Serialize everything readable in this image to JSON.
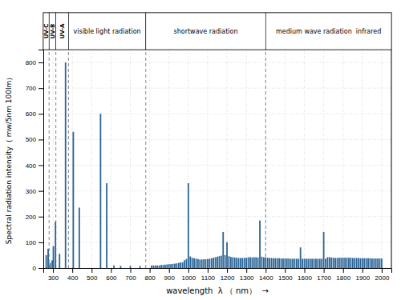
{
  "chart_data": {
    "type": "bar",
    "xlabel": "wavelength  λ （ nm）  →",
    "ylabel": "Spectral radiation intensity（ mw/5nm 100lm）",
    "xlim": [
      250,
      2050
    ],
    "ylim": [
      0,
      850
    ],
    "xticks": [
      300,
      400,
      500,
      600,
      700,
      800,
      900,
      1000,
      1100,
      1200,
      1300,
      1400,
      1500,
      1600,
      1700,
      1800,
      1900,
      2000
    ],
    "yticks": [
      0,
      100,
      200,
      300,
      400,
      500,
      600,
      700,
      800
    ],
    "grid": true,
    "color": "#2a6496",
    "regions": [
      {
        "label": "UV-C",
        "x1": 250,
        "x2": 280
      },
      {
        "label": "UV-B",
        "x1": 280,
        "x2": 315
      },
      {
        "label": "UV-A",
        "x1": 315,
        "x2": 380
      },
      {
        "label": "visible light radiation",
        "x1": 380,
        "x2": 780
      },
      {
        "label": "shortwave radiation",
        "x1": 780,
        "x2": 1400
      },
      {
        "label": "medium wave radiation  infrared",
        "x1": 1400,
        "x2": 2050
      }
    ],
    "dividers": [
      280,
      315,
      380,
      780,
      1400
    ],
    "x": [
      265,
      275,
      285,
      296,
      302,
      313,
      334,
      365,
      405,
      436,
      546,
      578,
      615,
      650,
      700,
      750,
      810,
      820,
      830,
      840,
      850,
      860,
      870,
      880,
      890,
      900,
      910,
      920,
      930,
      940,
      950,
      960,
      970,
      980,
      990,
      1000,
      1010,
      1020,
      1030,
      1040,
      1050,
      1060,
      1070,
      1080,
      1090,
      1100,
      1110,
      1120,
      1130,
      1140,
      1150,
      1160,
      1170,
      1180,
      1190,
      1200,
      1210,
      1220,
      1230,
      1240,
      1250,
      1260,
      1270,
      1280,
      1290,
      1300,
      1310,
      1320,
      1330,
      1340,
      1350,
      1360,
      1370,
      1380,
      1390,
      1400,
      1410,
      1420,
      1430,
      1440,
      1450,
      1460,
      1470,
      1480,
      1490,
      1500,
      1510,
      1520,
      1530,
      1540,
      1550,
      1560,
      1570,
      1580,
      1590,
      1600,
      1610,
      1620,
      1630,
      1640,
      1650,
      1660,
      1670,
      1680,
      1690,
      1700,
      1710,
      1720,
      1730,
      1740,
      1750,
      1760,
      1770,
      1780,
      1790,
      1800,
      1810,
      1820,
      1830,
      1840,
      1850,
      1860,
      1870,
      1880,
      1890,
      1900,
      1910,
      1920,
      1930,
      1940,
      1950,
      1960,
      1970,
      1980,
      1990,
      2000
    ],
    "values": [
      50,
      75,
      20,
      30,
      85,
      180,
      55,
      800,
      530,
      235,
      600,
      330,
      10,
      8,
      8,
      8,
      10,
      10,
      10,
      10,
      10,
      12,
      12,
      13,
      14,
      15,
      15,
      16,
      17,
      18,
      20,
      22,
      22,
      30,
      35,
      330,
      45,
      40,
      38,
      36,
      35,
      33,
      33,
      34,
      34,
      35,
      36,
      38,
      40,
      42,
      44,
      46,
      48,
      140,
      50,
      100,
      46,
      43,
      42,
      41,
      40,
      39,
      39,
      39,
      39,
      40,
      42,
      42,
      41,
      42,
      42,
      41,
      185,
      44,
      42,
      41,
      40,
      39,
      39,
      38,
      38,
      38,
      38,
      37,
      37,
      37,
      37,
      37,
      36,
      36,
      36,
      36,
      36,
      80,
      36,
      36,
      36,
      36,
      36,
      36,
      36,
      36,
      36,
      36,
      36,
      140,
      36,
      42,
      42,
      41,
      40,
      39,
      39,
      40,
      40,
      40,
      40,
      40,
      40,
      40,
      39,
      39,
      39,
      39,
      38,
      38,
      38,
      38,
      38,
      38,
      37,
      37,
      37,
      37,
      37,
      37
    ]
  }
}
